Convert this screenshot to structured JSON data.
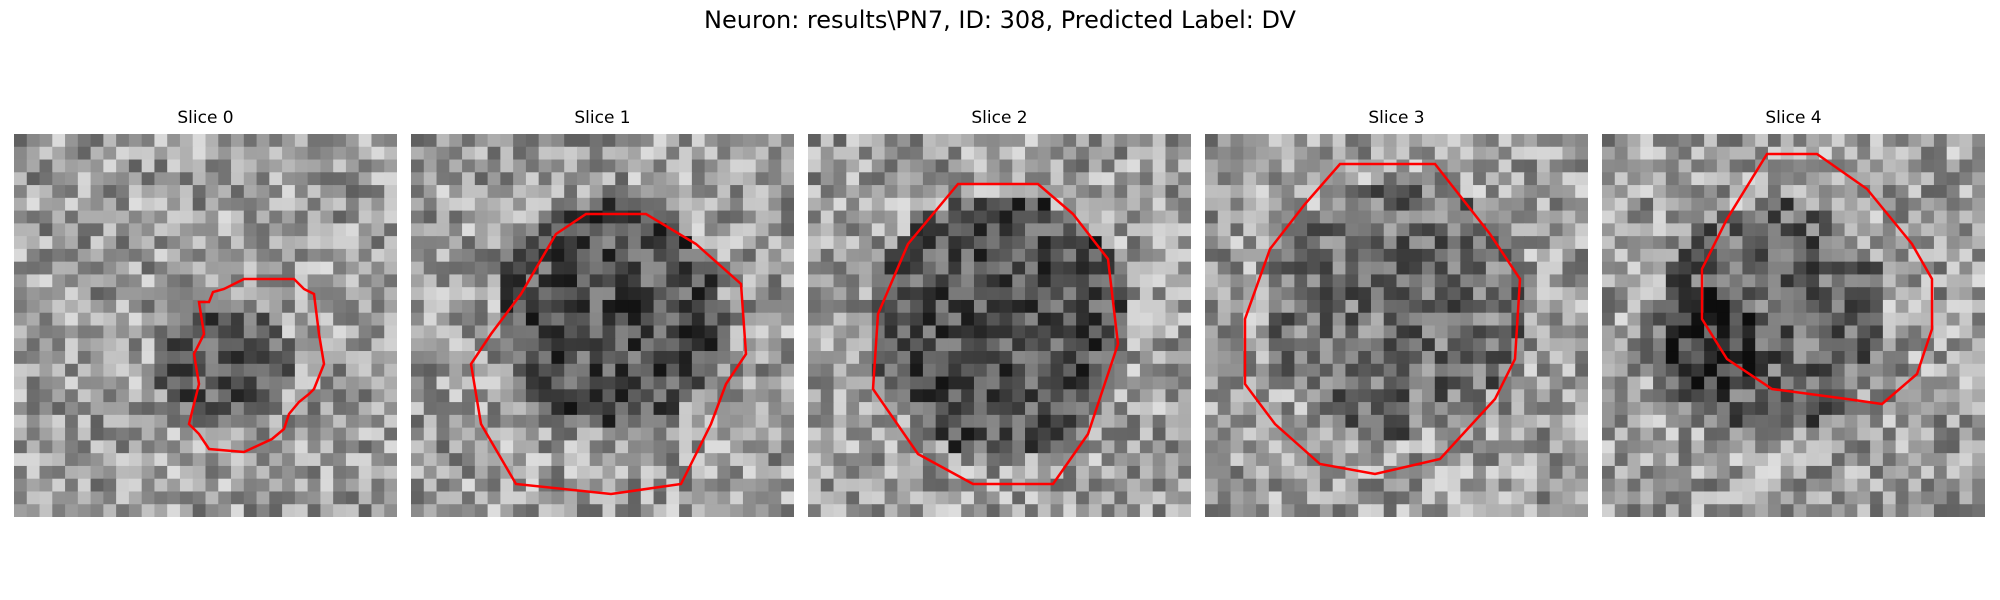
{
  "figure": {
    "title": "Neuron: results\\PN7, ID: 308, Predicted Label: DV"
  },
  "panels": [
    {
      "label": "Slice 0"
    },
    {
      "label": "Slice 1"
    },
    {
      "label": "Slice 2"
    },
    {
      "label": "Slice 3"
    },
    {
      "label": "Slice 4"
    }
  ],
  "colors": {
    "contour": "#ff0000",
    "background": "#ffffff"
  }
}
